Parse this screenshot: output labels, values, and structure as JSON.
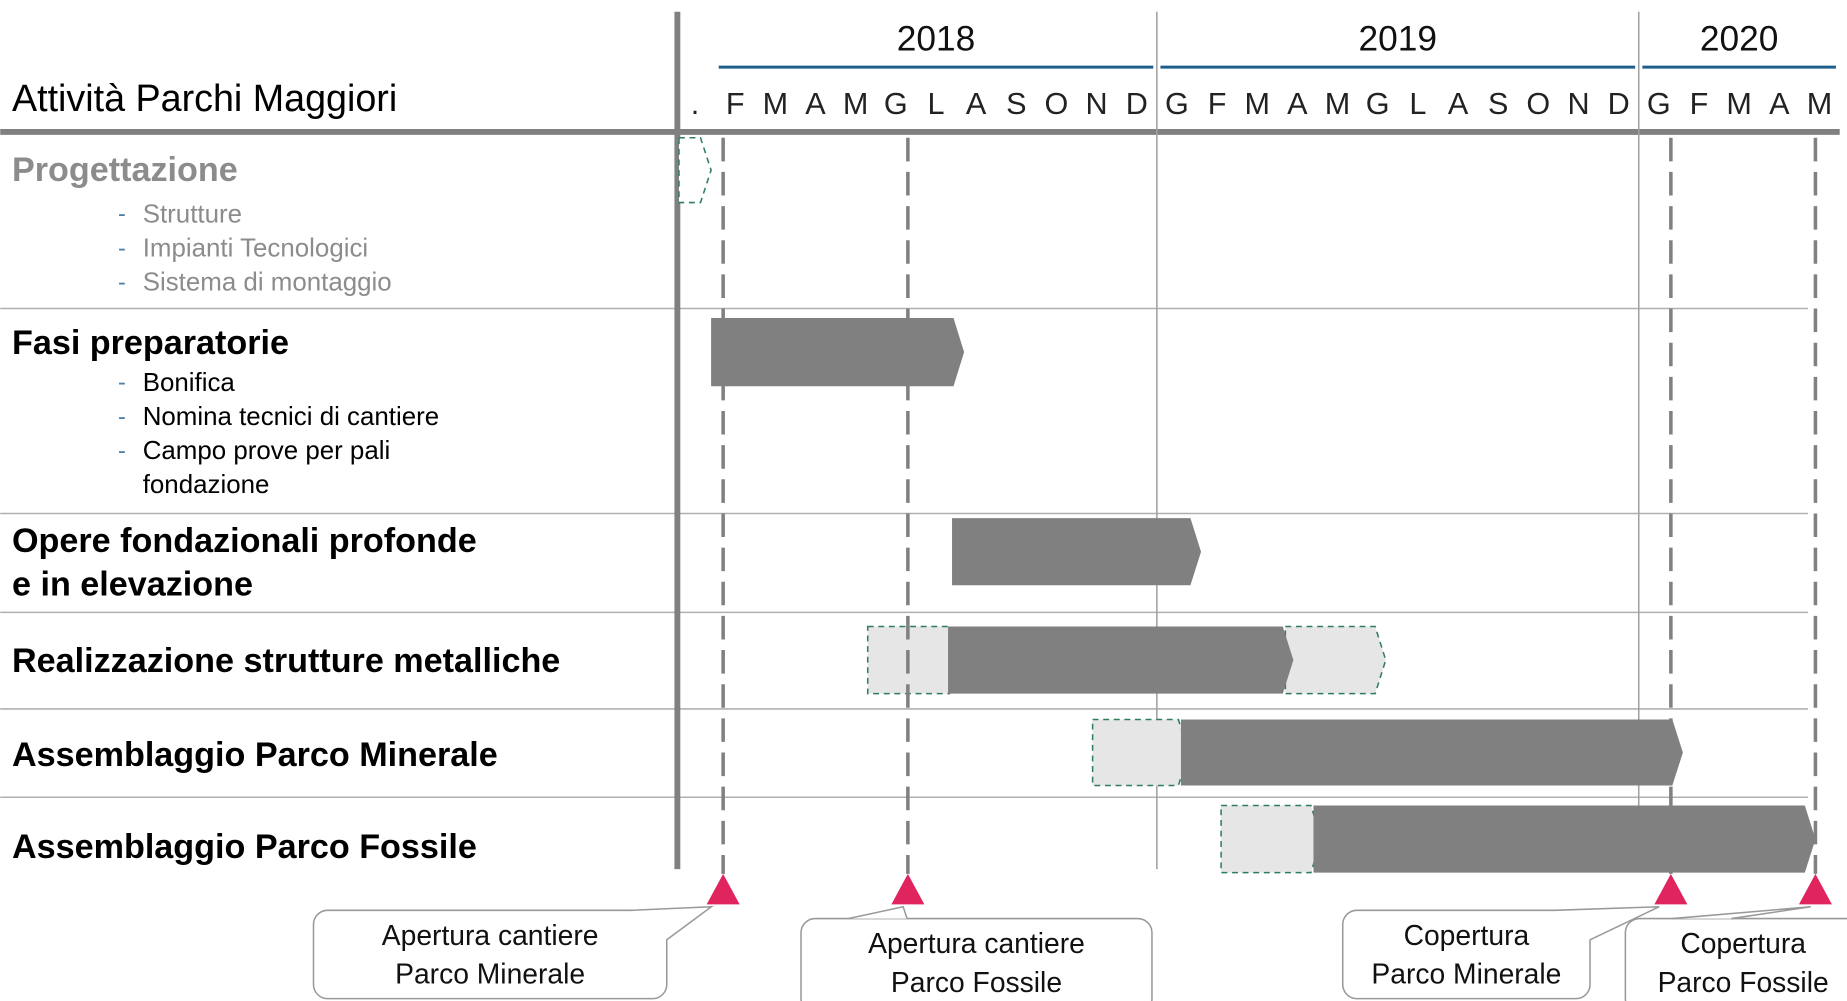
{
  "chart_data": {
    "type": "gantt",
    "title": "Attività Parchi Maggiori",
    "categories": [
      ".",
      "F",
      "M",
      "A",
      "M",
      "G",
      "L",
      "A",
      "S",
      "O",
      "N",
      "D",
      "G",
      "F",
      "M",
      "A",
      "M",
      "G",
      "L",
      "A",
      "S",
      "O",
      "N",
      "D",
      "G",
      "F",
      "M",
      "A",
      "M"
    ],
    "years": [
      {
        "label": "2018",
        "from": 1,
        "to": 11
      },
      {
        "label": "2019",
        "from": 12,
        "to": 23
      },
      {
        "label": "2020",
        "from": 24,
        "to": 28
      }
    ],
    "year_line_color": "#1f5f8b",
    "tasks": [
      {
        "title": [
          "Progettazione"
        ],
        "color": "#8c8c8c",
        "items": [
          [
            "Strutture"
          ],
          [
            "Impianti Tecnologici"
          ],
          [
            "Sistema di montaggio"
          ]
        ],
        "bars": [
          {
            "start": -0.4,
            "end": 0.4,
            "color": "#ffffff",
            "dashed": true
          }
        ]
      },
      {
        "title": [
          "Fasi preparatorie"
        ],
        "color": "#000000",
        "items": [
          [
            "Bonifica"
          ],
          [
            "Nomina tecnici di cantiere"
          ],
          [
            "Campo prove per pali",
            "fondazione"
          ]
        ],
        "bars": [
          {
            "start": 0.4,
            "end": 6.7,
            "color": "#808080",
            "dashed": false
          }
        ]
      },
      {
        "title": [
          "Opere fondazionali profonde",
          "e in elevazione"
        ],
        "color": "#000000",
        "items": [],
        "bars": [
          {
            "start": 6.4,
            "end": 12.6,
            "color": "#808080",
            "dashed": false
          }
        ]
      },
      {
        "title": [
          "Realizzazione strutture metalliche"
        ],
        "color": "#000000",
        "items": [],
        "bars": [
          {
            "start": 4.3,
            "end": 6.6,
            "color": "#e6e6e6",
            "dashed": true
          },
          {
            "start": 14.7,
            "end": 17.2,
            "color": "#e6e6e6",
            "dashed": true
          },
          {
            "start": 6.3,
            "end": 14.9,
            "color": "#808080",
            "dashed": false
          }
        ]
      },
      {
        "title": [
          "Assemblaggio Parco Minerale"
        ],
        "color": "#000000",
        "items": [],
        "bars": [
          {
            "start": 9.9,
            "end": 12.3,
            "color": "#e6e6e6",
            "dashed": true
          },
          {
            "start": 12.1,
            "end": 24.6,
            "color": "#808080",
            "dashed": false
          }
        ]
      },
      {
        "title": [
          "Assemblaggio Parco Fossile"
        ],
        "color": "#000000",
        "items": [],
        "bars": [
          {
            "start": 13.1,
            "end": 15.6,
            "color": "#e6e6e6",
            "dashed": true
          },
          {
            "start": 15.4,
            "end": 27.9,
            "color": "#808080",
            "dashed": false
          }
        ]
      }
    ],
    "milestones": [
      {
        "at": 0.7,
        "label": [
          "Apertura cantiere",
          "Parco Minerale"
        ]
      },
      {
        "at": 5.3,
        "label": [
          "Apertura cantiere",
          "Parco Fossile"
        ]
      },
      {
        "at": 24.3,
        "label": [
          "Copertura",
          "Parco Minerale"
        ]
      },
      {
        "at": 27.9,
        "label": [
          "Copertura",
          "Parco Fossile"
        ]
      }
    ],
    "milestone_color": "#e0245e"
  }
}
